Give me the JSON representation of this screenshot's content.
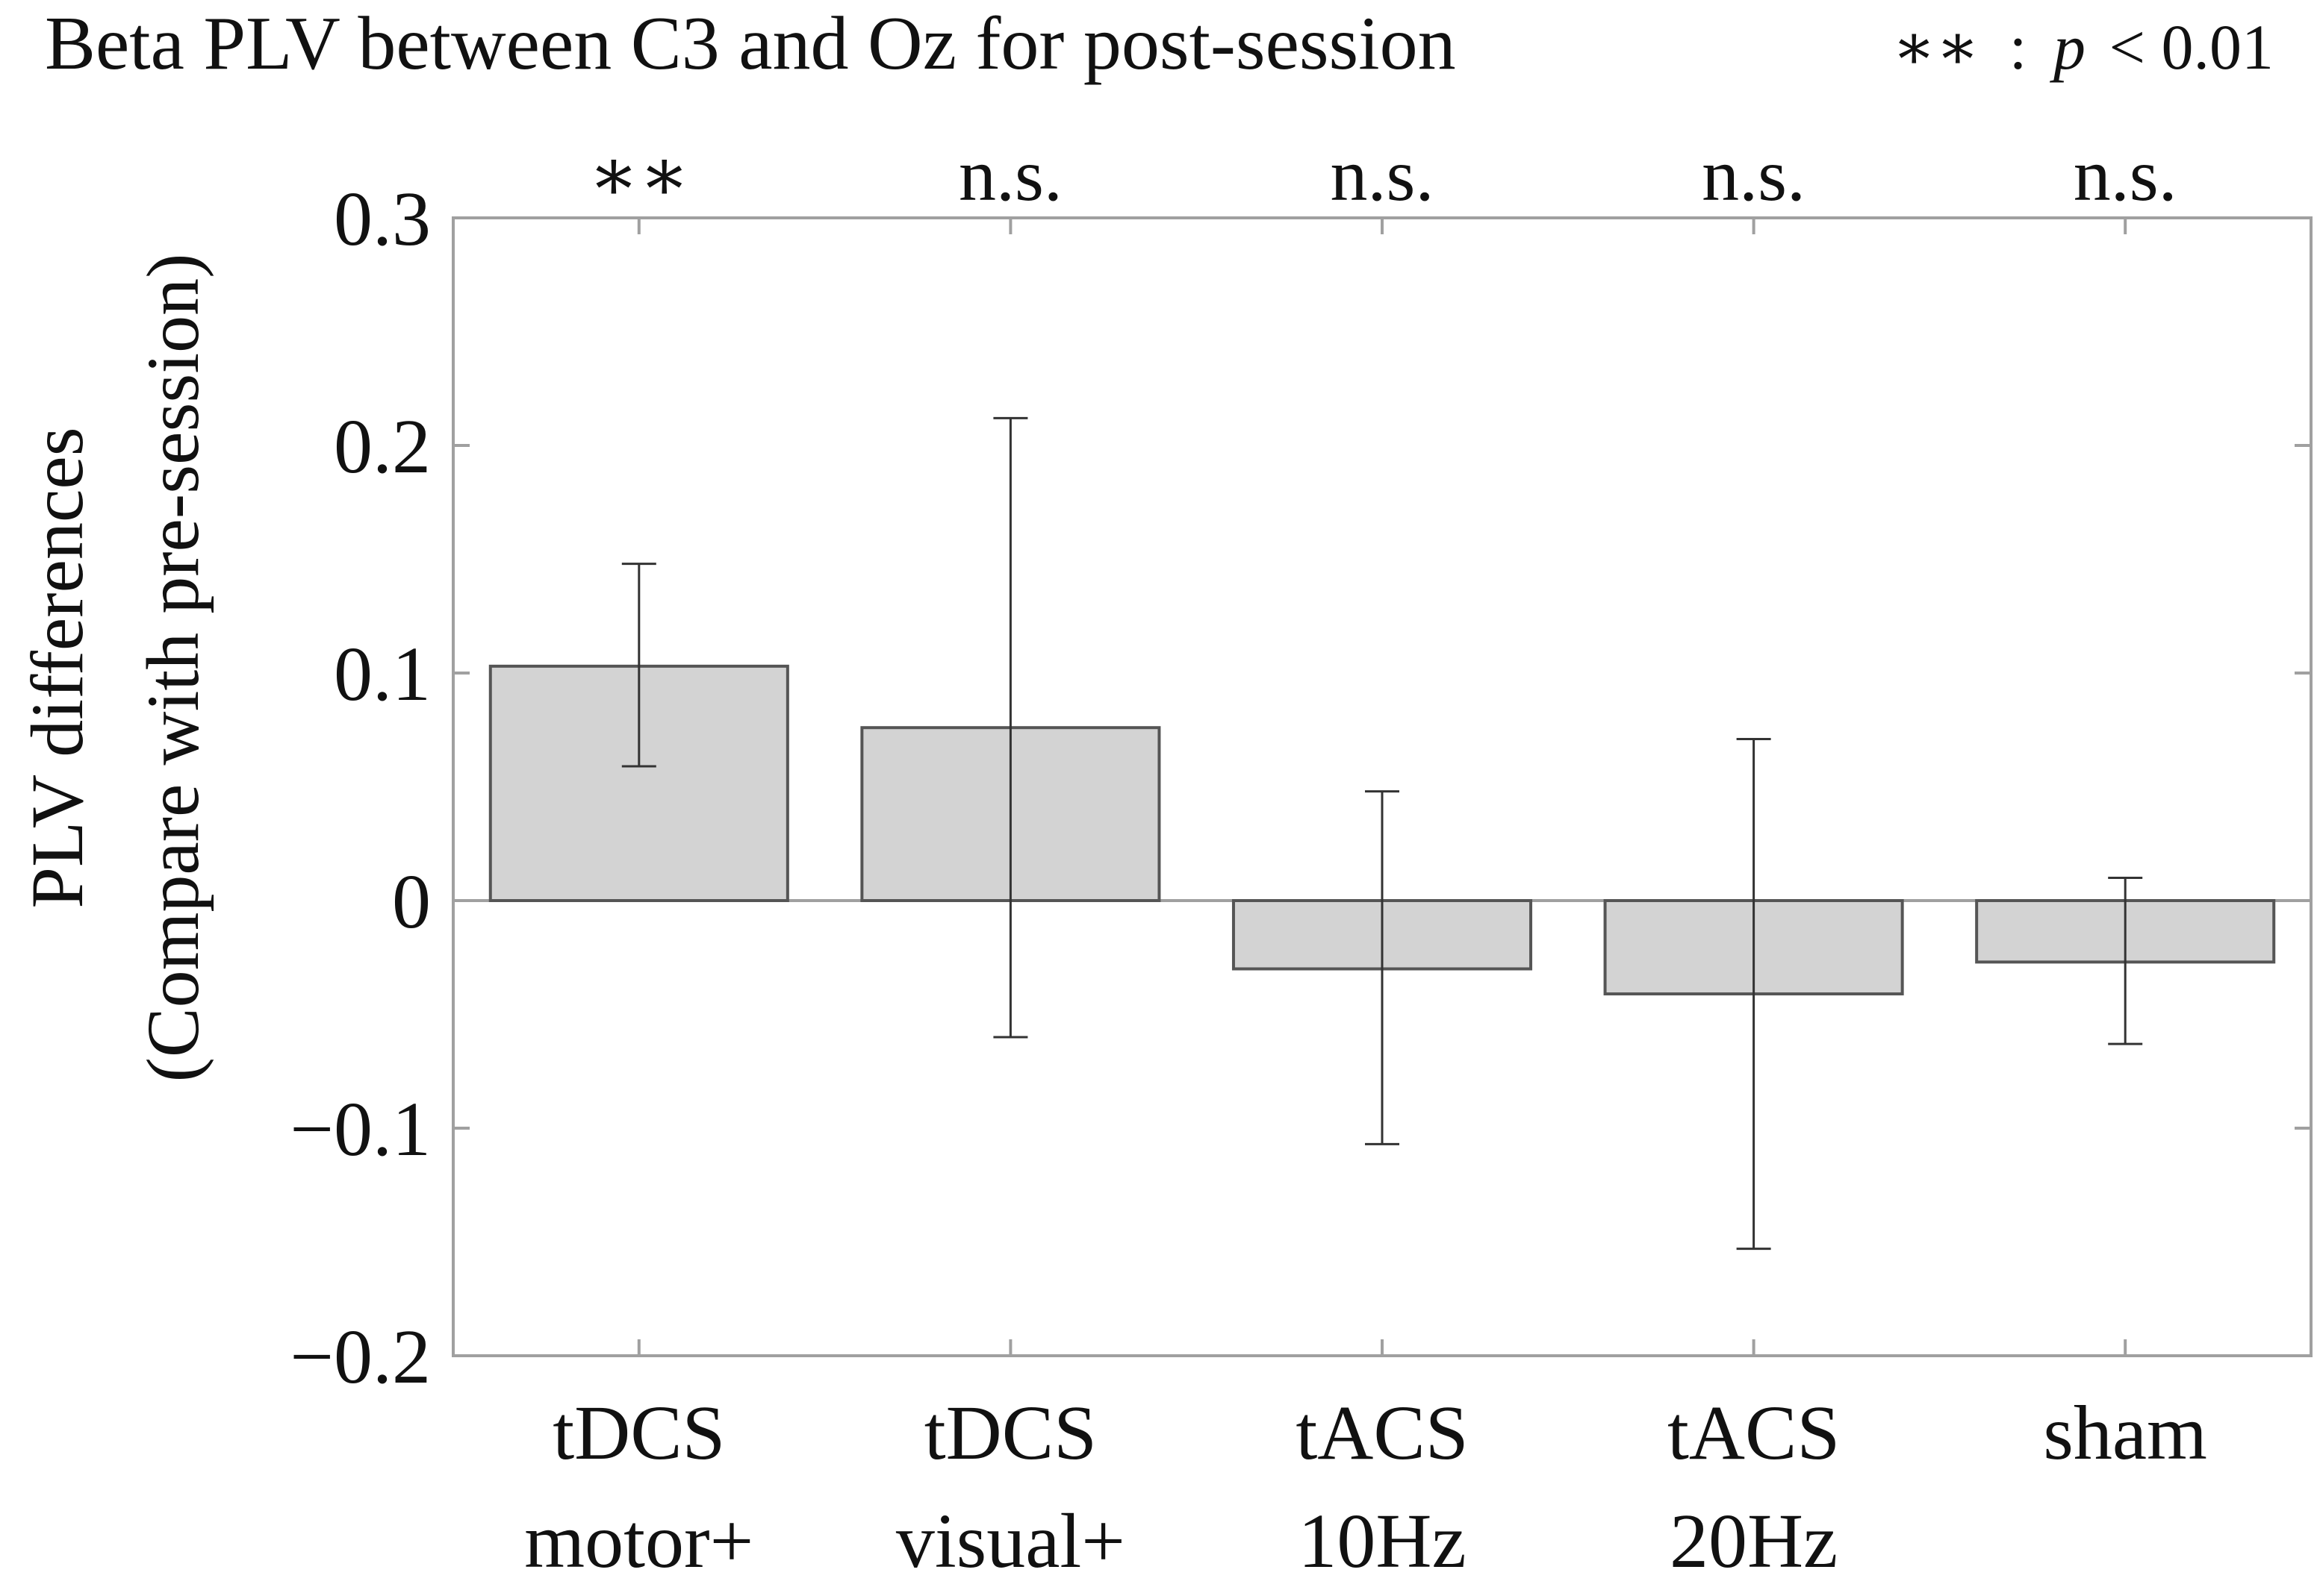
{
  "chart_data": {
    "type": "bar",
    "title": "Beta PLV between C3 and Oz for post-session",
    "legend_note": {
      "stars": "∗∗",
      "colon": ":",
      "p_symbol": "p",
      "relation": "< 0.01"
    },
    "ylabel_line1": "PLV differences",
    "ylabel_line2": "(Compare with pre-session)",
    "xlabel": "",
    "ylim": [
      -0.2,
      0.3
    ],
    "yticks": [
      0.3,
      0.2,
      0.1,
      0,
      -0.1,
      -0.2
    ],
    "ytick_labels": [
      "0.3",
      "0.2",
      "0.1",
      "0",
      "−0.1",
      "−0.2"
    ],
    "grid": false,
    "categories": [
      {
        "line1": "tDCS",
        "line2": "motor+"
      },
      {
        "line1": "tDCS",
        "line2": "visual+"
      },
      {
        "line1": "tACS",
        "line2": "10Hz"
      },
      {
        "line1": "tACS",
        "line2": "20Hz"
      },
      {
        "line1": "sham",
        "line2": ""
      }
    ],
    "values": [
      0.103,
      0.076,
      -0.03,
      -0.041,
      -0.027
    ],
    "error_low": [
      0.059,
      -0.06,
      -0.107,
      -0.153,
      -0.063
    ],
    "error_high": [
      0.148,
      0.212,
      0.048,
      0.071,
      0.01
    ],
    "significance": [
      "∗∗",
      "n.s.",
      "n.s.",
      "n.s.",
      "n.s."
    ],
    "bar_color": "#d3d3d3",
    "bar_edge_color": "#555555",
    "axis_color": "#a0a0a0"
  }
}
